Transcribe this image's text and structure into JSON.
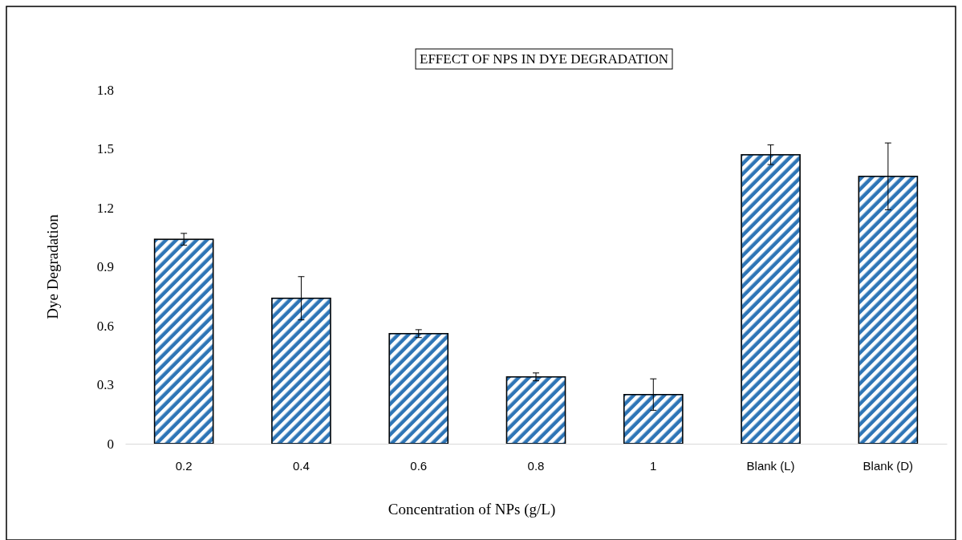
{
  "chart_data": {
    "type": "bar",
    "title": "EFFECT OF NPS IN DYE DEGRADATION",
    "xlabel": "Concentration of NPs (g/L)",
    "ylabel": "Dye Degradation",
    "categories": [
      "0.2",
      "0.4",
      "0.6",
      "0.8",
      "1",
      "Blank (L)",
      "Blank (D)"
    ],
    "values": [
      1.04,
      0.74,
      0.56,
      0.34,
      0.25,
      1.47,
      1.36
    ],
    "errors": [
      0.03,
      0.11,
      0.02,
      0.02,
      0.08,
      0.05,
      0.17
    ],
    "color": "#2e75b6",
    "ylim": [
      0,
      1.8
    ],
    "yticks": [
      0,
      0.3,
      0.6,
      0.9,
      1.2,
      1.5,
      1.8
    ],
    "grid": false
  }
}
